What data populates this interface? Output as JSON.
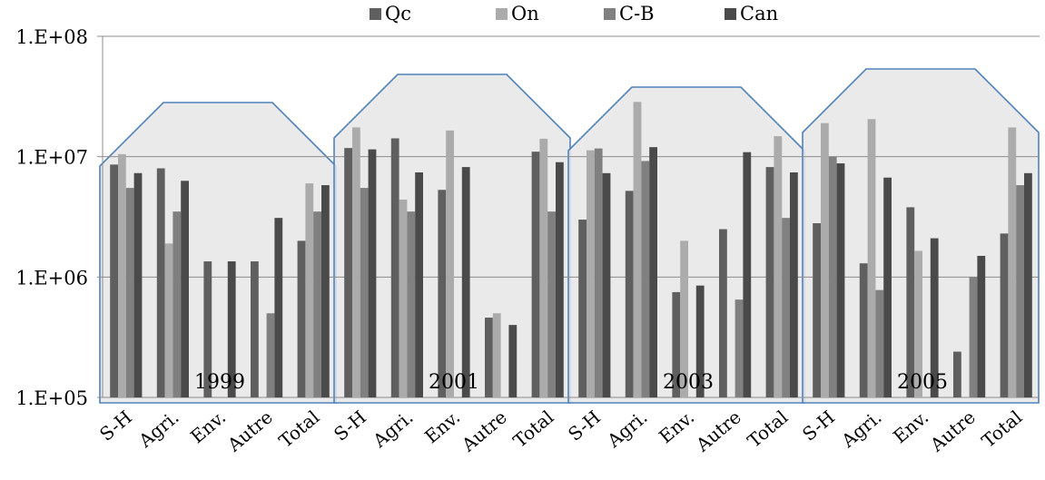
{
  "chart_data": {
    "type": "bar",
    "scale": "log",
    "ylim": [
      100000,
      100000000
    ],
    "yticks": [
      "1.E+05",
      "1.E+06",
      "1.E+07",
      "1.E+08"
    ],
    "grid": true,
    "legend_position": "top",
    "categories": [
      "S-H",
      "Agri.",
      "Env.",
      "Autre",
      "Total"
    ],
    "groups": [
      {
        "label": "1999",
        "series": [
          {
            "name": "Qc",
            "values": [
              8600000,
              8000000,
              1350000,
              1350000,
              2000000
            ]
          },
          {
            "name": "On",
            "values": [
              10500000,
              1900000,
              null,
              null,
              6000000
            ]
          },
          {
            "name": "C-B",
            "values": [
              5500000,
              3500000,
              null,
              500000,
              3500000
            ]
          },
          {
            "name": "Can",
            "values": [
              7300000,
              6300000,
              1350000,
              3100000,
              5800000
            ]
          }
        ]
      },
      {
        "label": "2001",
        "series": [
          {
            "name": "Qc",
            "values": [
              11800000,
              14200000,
              5300000,
              460000,
              11000000
            ]
          },
          {
            "name": "On",
            "values": [
              17500000,
              4400000,
              16500000,
              500000,
              14100000
            ]
          },
          {
            "name": "C-B",
            "values": [
              5500000,
              3500000,
              null,
              null,
              3500000
            ]
          },
          {
            "name": "Can",
            "values": [
              11500000,
              7400000,
              8200000,
              400000,
              9000000
            ]
          }
        ]
      },
      {
        "label": "2003",
        "series": [
          {
            "name": "Qc",
            "values": [
              3000000,
              5200000,
              750000,
              2500000,
              8200000
            ]
          },
          {
            "name": "On",
            "values": [
              11300000,
              28500000,
              2000000,
              null,
              14800000
            ]
          },
          {
            "name": "C-B",
            "values": [
              11700000,
              9200000,
              null,
              650000,
              3100000
            ]
          },
          {
            "name": "Can",
            "values": [
              7300000,
              12000000,
              850000,
              10900000,
              7400000
            ]
          }
        ]
      },
      {
        "label": "2005",
        "series": [
          {
            "name": "Qc",
            "values": [
              2800000,
              1300000,
              3800000,
              240000,
              2300000
            ]
          },
          {
            "name": "On",
            "values": [
              19000000,
              20500000,
              1650000,
              null,
              17500000
            ]
          },
          {
            "name": "C-B",
            "values": [
              10000000,
              780000,
              null,
              1000000,
              5800000
            ]
          },
          {
            "name": "Can",
            "values": [
              8800000,
              6700000,
              2100000,
              1500000,
              7300000
            ]
          }
        ]
      }
    ],
    "colors": {
      "Qc": "#5f5f5f",
      "On": "#ababab",
      "C-B": "#808080",
      "Can": "#4a4a4a",
      "group_outline": "#4f81bd",
      "group_fill": "#e6e6e6",
      "grid": "#8c8c8c"
    }
  }
}
